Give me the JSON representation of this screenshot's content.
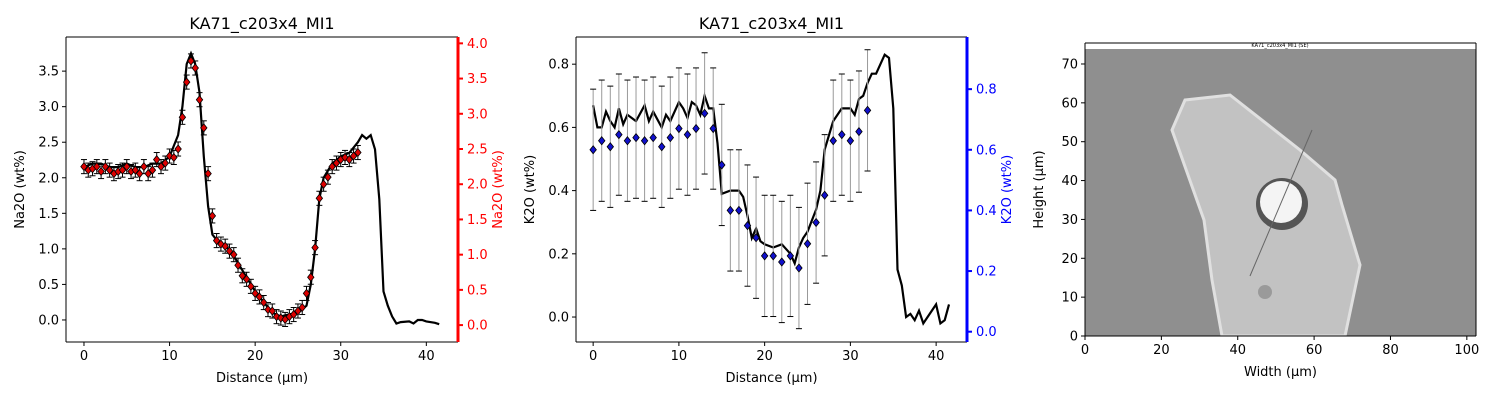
{
  "chart_data": [
    {
      "type": "dual-axis",
      "title": "KA71_c203x4_MI1",
      "xlabel": "Distance (µm)",
      "ylabel": "Na2O (wt%)",
      "y2label": "Na2O (wt%)",
      "y2color": "#ff0000",
      "xlim": [
        -2.1,
        43.7
      ],
      "ylim": [
        -0.31,
        3.98
      ],
      "y2lim": [
        -0.24,
        4.09
      ],
      "xticks": [
        0,
        10,
        20,
        30,
        40
      ],
      "yticks": [
        {
          "value": 0,
          "label": "0.0"
        },
        {
          "value": 0.5,
          "label": "0.5"
        },
        {
          "value": 1,
          "label": "1.0"
        },
        {
          "value": 1.5,
          "label": "1.5"
        },
        {
          "value": 2,
          "label": "2.0"
        },
        {
          "value": 2.5,
          "label": "2.5"
        },
        {
          "value": 3,
          "label": "3.0"
        },
        {
          "value": 3.5,
          "label": "3.5"
        }
      ],
      "y2ticks": [
        {
          "value": 0,
          "label": "0.0"
        },
        {
          "value": 0.5,
          "label": "0.5"
        },
        {
          "value": 1,
          "label": "1.0"
        },
        {
          "value": 1.5,
          "label": "1.5"
        },
        {
          "value": 2,
          "label": "2.0"
        },
        {
          "value": 2.5,
          "label": "2.5"
        },
        {
          "value": 3,
          "label": "3.0"
        },
        {
          "value": 3.5,
          "label": "3.5"
        },
        {
          "value": 4,
          "label": "4.0"
        }
      ],
      "series": [
        {
          "kind": "line",
          "color": "#000000",
          "x": [
            0,
            1,
            2,
            3,
            4,
            5,
            6,
            7,
            8,
            9,
            10,
            11,
            11.5,
            12,
            12.5,
            13,
            13.5,
            14,
            14.5,
            15,
            16,
            17,
            18,
            19,
            20,
            21,
            22,
            23,
            24,
            25,
            26,
            26.5,
            27,
            27.5,
            28,
            29,
            30,
            31,
            32,
            32.5,
            33,
            33.5,
            34,
            34.5,
            35,
            35.5,
            36,
            36.5,
            37,
            38,
            38.5,
            39,
            39.5,
            40,
            41,
            41.5
          ],
          "values": [
            2.15,
            2.2,
            2.2,
            2.15,
            2.15,
            2.2,
            2.15,
            2.15,
            2.2,
            2.2,
            2.3,
            2.6,
            3.0,
            3.6,
            3.75,
            3.6,
            3.2,
            2.3,
            1.6,
            1.2,
            1.05,
            1.0,
            0.8,
            0.6,
            0.4,
            0.25,
            0.1,
            0.05,
            0.08,
            0.1,
            0.2,
            0.5,
            1.0,
            1.7,
            2.0,
            2.2,
            2.3,
            2.35,
            2.5,
            2.6,
            2.55,
            2.6,
            2.4,
            1.7,
            0.4,
            0.2,
            0.05,
            -0.05,
            -0.03,
            -0.02,
            -0.05,
            0.0,
            0.0,
            -0.02,
            -0.04,
            -0.06
          ]
        },
        {
          "kind": "scatter",
          "axis": "y2",
          "color": "#dd0000",
          "error_color": "#000000",
          "x": [
            0,
            0.5,
            1,
            1.5,
            2,
            2.5,
            3,
            3.5,
            4,
            4.5,
            5,
            5.5,
            6,
            6.5,
            7,
            7.5,
            8,
            8.5,
            9,
            9.5,
            10,
            10.5,
            11,
            11.5,
            12,
            12.5,
            13,
            13.5,
            14,
            14.5,
            15,
            15.5,
            16,
            16.5,
            17,
            17.5,
            18,
            18.5,
            19,
            19.5,
            20,
            20.5,
            21,
            21.5,
            22,
            22.5,
            23,
            23.5,
            24,
            24.5,
            25,
            25.5,
            26,
            26.5,
            27,
            27.5,
            28,
            28.5,
            29,
            29.5,
            30,
            30.5,
            31,
            31.5,
            32
          ],
          "values": [
            2.25,
            2.2,
            2.22,
            2.25,
            2.18,
            2.25,
            2.2,
            2.15,
            2.18,
            2.2,
            2.25,
            2.18,
            2.2,
            2.15,
            2.25,
            2.15,
            2.2,
            2.35,
            2.25,
            2.3,
            2.4,
            2.38,
            2.5,
            2.95,
            3.45,
            3.75,
            3.65,
            3.2,
            2.8,
            2.15,
            1.55,
            1.2,
            1.15,
            1.12,
            1.05,
            1.0,
            0.85,
            0.7,
            0.65,
            0.55,
            0.45,
            0.4,
            0.32,
            0.22,
            0.2,
            0.12,
            0.1,
            0.08,
            0.12,
            0.15,
            0.2,
            0.25,
            0.45,
            0.68,
            1.1,
            1.8,
            2.0,
            2.1,
            2.25,
            2.3,
            2.35,
            2.38,
            2.35,
            2.4,
            2.45
          ],
          "errors": [
            0.1,
            0.1,
            0.1,
            0.1,
            0.1,
            0.1,
            0.1,
            0.1,
            0.1,
            0.1,
            0.1,
            0.1,
            0.1,
            0.1,
            0.1,
            0.1,
            0.1,
            0.1,
            0.1,
            0.1,
            0.1,
            0.1,
            0.1,
            0.1,
            0.1,
            0.1,
            0.1,
            0.1,
            0.1,
            0.1,
            0.1,
            0.1,
            0.1,
            0.1,
            0.1,
            0.1,
            0.1,
            0.1,
            0.1,
            0.1,
            0.1,
            0.1,
            0.1,
            0.1,
            0.1,
            0.1,
            0.1,
            0.1,
            0.1,
            0.1,
            0.1,
            0.1,
            0.1,
            0.1,
            0.1,
            0.1,
            0.1,
            0.1,
            0.1,
            0.1,
            0.1,
            0.1,
            0.1,
            0.1,
            0.1
          ]
        }
      ]
    },
    {
      "type": "dual-axis",
      "title": "KA71_c203x4_MI1",
      "xlabel": "Distance (µm)",
      "ylabel": "K2O (wt%)",
      "y2label": "K2O (wt%)",
      "y2color": "#0000ff",
      "xlim": [
        -2.0,
        43.6
      ],
      "ylim": [
        -0.079,
        0.886
      ],
      "y2lim": [
        -0.034,
        0.972
      ],
      "xticks": [
        0,
        10,
        20,
        30,
        40
      ],
      "yticks": [
        {
          "value": 0,
          "label": "0.0"
        },
        {
          "value": 0.2,
          "label": "0.2"
        },
        {
          "value": 0.4,
          "label": "0.4"
        },
        {
          "value": 0.6,
          "label": "0.6"
        },
        {
          "value": 0.8,
          "label": "0.8"
        }
      ],
      "y2ticks": [
        {
          "value": 0,
          "label": "0.0"
        },
        {
          "value": 0.2,
          "label": "0.2"
        },
        {
          "value": 0.4,
          "label": "0.4"
        },
        {
          "value": 0.6,
          "label": "0.6"
        },
        {
          "value": 0.8,
          "label": "0.8"
        }
      ],
      "series": [
        {
          "kind": "line",
          "color": "#000000",
          "x": [
            0,
            0.5,
            1,
            1.5,
            2,
            2.5,
            3,
            3.5,
            4,
            5,
            6,
            6.5,
            7,
            8,
            8.5,
            9,
            10,
            10.5,
            11,
            11.5,
            12,
            12.5,
            13,
            13.5,
            14,
            14.5,
            15,
            16,
            17,
            17.5,
            18,
            18.5,
            19,
            19.5,
            20,
            21,
            22,
            23,
            23.5,
            24,
            24.5,
            25,
            26,
            26.5,
            27,
            28,
            29,
            30,
            30.5,
            31,
            31.5,
            32,
            32.5,
            33,
            33.5,
            34,
            34.5,
            35,
            35.5,
            36,
            36.5,
            37,
            37.5,
            38,
            38.5,
            39,
            40,
            40.5,
            41,
            41.5
          ],
          "values": [
            0.67,
            0.6,
            0.6,
            0.65,
            0.62,
            0.6,
            0.66,
            0.61,
            0.64,
            0.62,
            0.67,
            0.62,
            0.65,
            0.6,
            0.64,
            0.62,
            0.68,
            0.66,
            0.63,
            0.68,
            0.67,
            0.64,
            0.7,
            0.66,
            0.66,
            0.55,
            0.39,
            0.4,
            0.4,
            0.38,
            0.32,
            0.25,
            0.28,
            0.24,
            0.23,
            0.22,
            0.23,
            0.2,
            0.17,
            0.22,
            0.25,
            0.27,
            0.34,
            0.4,
            0.53,
            0.62,
            0.66,
            0.66,
            0.64,
            0.69,
            0.7,
            0.74,
            0.77,
            0.77,
            0.8,
            0.83,
            0.82,
            0.66,
            0.15,
            0.1,
            0.0,
            0.01,
            -0.01,
            0.02,
            -0.02,
            0.0,
            0.04,
            -0.02,
            -0.01,
            0.04
          ]
        },
        {
          "kind": "scatter",
          "axis": "y2",
          "color": "#1010cc",
          "error_color": "#999999",
          "x": [
            0,
            1,
            2,
            3,
            4,
            5,
            6,
            7,
            8,
            9,
            10,
            11,
            12,
            13,
            14,
            15,
            16,
            17,
            18,
            19,
            20,
            21,
            22,
            23,
            24,
            25,
            26,
            27,
            28,
            29,
            30,
            31,
            32
          ],
          "values": [
            0.6,
            0.63,
            0.61,
            0.65,
            0.63,
            0.64,
            0.63,
            0.64,
            0.61,
            0.64,
            0.67,
            0.65,
            0.67,
            0.72,
            0.67,
            0.55,
            0.4,
            0.4,
            0.35,
            0.31,
            0.25,
            0.25,
            0.23,
            0.25,
            0.21,
            0.29,
            0.36,
            0.45,
            0.63,
            0.65,
            0.63,
            0.66,
            0.73
          ],
          "errors": [
            0.2,
            0.2,
            0.2,
            0.2,
            0.2,
            0.2,
            0.2,
            0.2,
            0.2,
            0.2,
            0.2,
            0.2,
            0.2,
            0.2,
            0.2,
            0.2,
            0.2,
            0.2,
            0.2,
            0.2,
            0.2,
            0.2,
            0.2,
            0.2,
            0.2,
            0.2,
            0.2,
            0.2,
            0.2,
            0.2,
            0.2,
            0.2,
            0.2
          ]
        }
      ]
    },
    {
      "type": "image",
      "xlabel": "Width (µm)",
      "ylabel": "Height (µm)",
      "image_caption": "KA71_c203x4_MI1 (SE)",
      "xlim": [
        0,
        102.4
      ],
      "ylim": [
        0,
        75.4
      ],
      "xticks": [
        0,
        20,
        40,
        60,
        80,
        100
      ],
      "yticks": [
        0,
        10,
        20,
        30,
        40,
        50,
        60,
        70
      ]
    }
  ]
}
